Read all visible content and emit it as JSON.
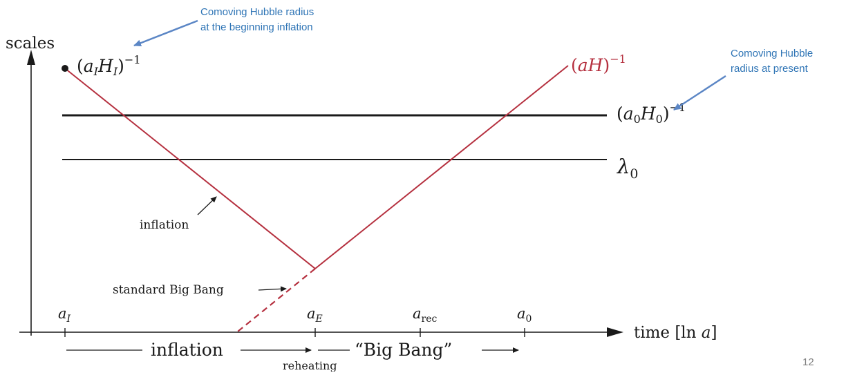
{
  "diagram": {
    "y_axis_label": "scales",
    "x_axis_label": "time [ln a]",
    "labels": {
      "aI_HI": "(a_I H_I)^-1",
      "aH": "(aH)^-1",
      "a0_H0": "(a_0 H_0)^-1",
      "lambda0": "λ_0",
      "inflation_line": "inflation",
      "standard_big_bang": "standard Big Bang"
    },
    "ticks": [
      "a_I",
      "a_E",
      "a_rec",
      "a_0"
    ],
    "phases": {
      "inflation": "inflation",
      "reheating": "reheating",
      "big_bang": "“Big Bang”"
    },
    "annotations": {
      "start_line1": "Comoving Hubble radius",
      "start_line2": "at the beginning inflation",
      "present_line1": "Comoving Hubble",
      "present_line2": "radius at present"
    },
    "page_number": "12"
  },
  "colors": {
    "curve": "#b5303f",
    "annotation": "#2e74b5",
    "arrow": "#5b86c5",
    "ink": "#1a1a1a"
  }
}
